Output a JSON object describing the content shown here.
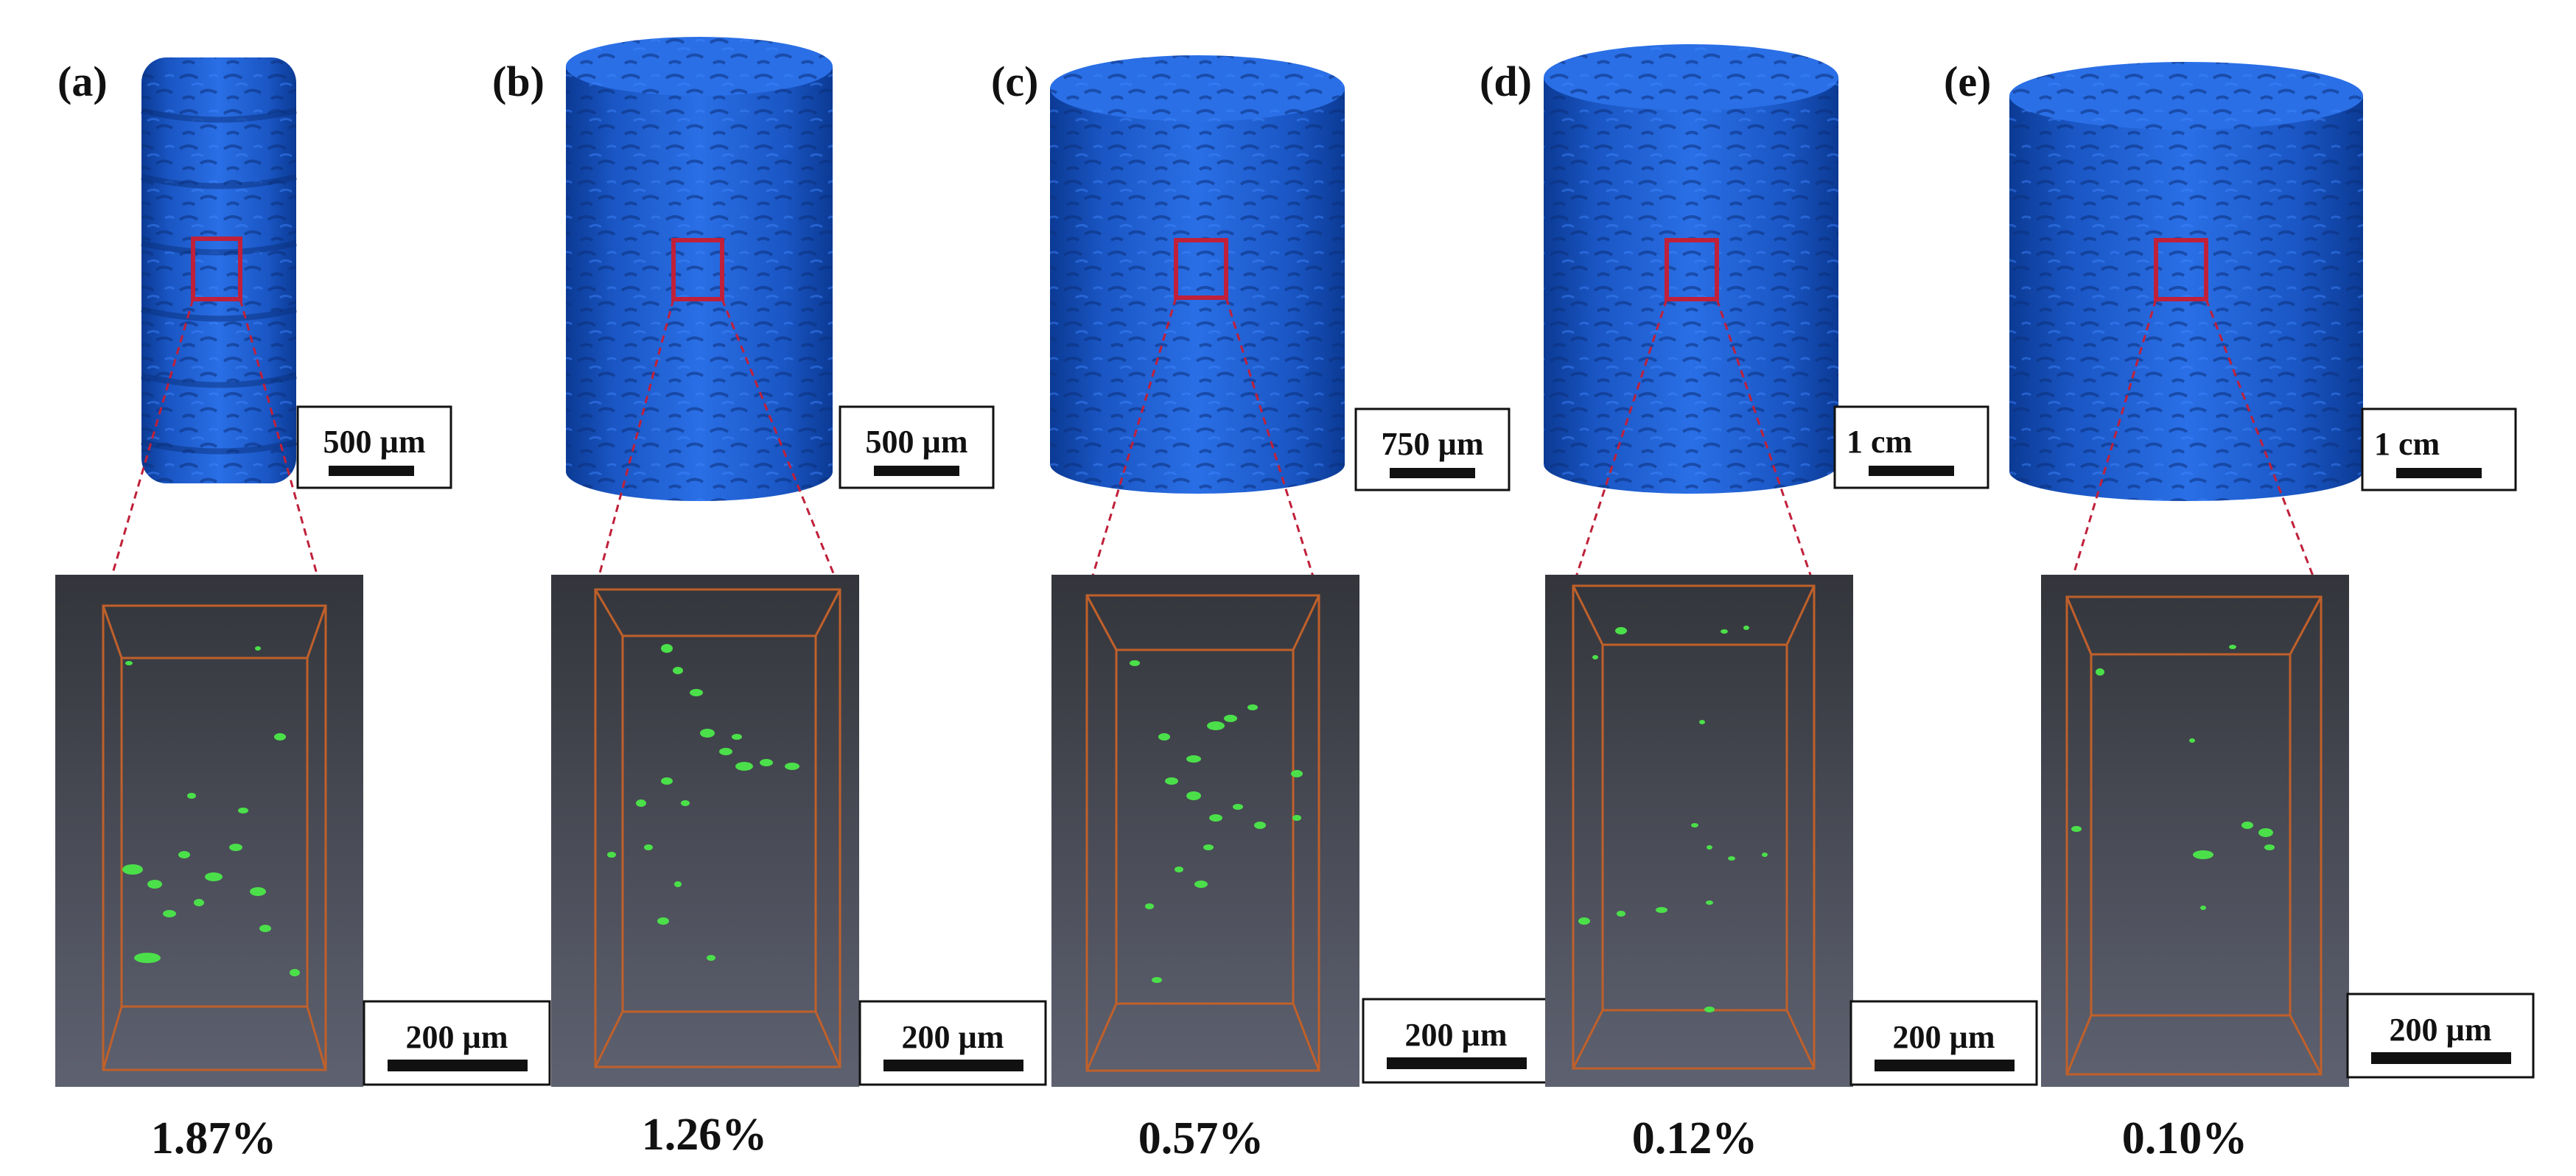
{
  "colors": {
    "sample_blue": "#1f63d8",
    "sample_shadow": "#0b3a94",
    "roi_red": "#c0203a",
    "detail_bg_top": "#33353b",
    "detail_bg_bottom": "#5e6170",
    "box_orange": "#c0602a",
    "defect_green": "#4be04a"
  },
  "panels": [
    {
      "letter": "(a)",
      "scale_top": "500 µm",
      "scale_bottom": "200 µm",
      "porosity": "1.87%"
    },
    {
      "letter": "(b)",
      "scale_top": "500 µm",
      "scale_bottom": "200 µm",
      "porosity": "1.26%"
    },
    {
      "letter": "(c)",
      "scale_top": "750 µm",
      "scale_bottom": "200 µm",
      "porosity": "0.57%"
    },
    {
      "letter": "(d)",
      "scale_top": "1 cm",
      "scale_bottom": "200 µm",
      "porosity": "0.12%"
    },
    {
      "letter": "(e)",
      "scale_top": "1 cm",
      "scale_bottom": "200 µm",
      "porosity": "0.10%"
    }
  ]
}
